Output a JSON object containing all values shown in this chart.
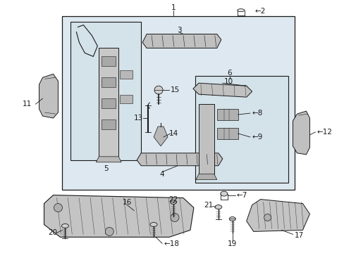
{
  "bg_color": "#ffffff",
  "outer_bg": "#dde8ee",
  "inner_bg": "#dde8ee",
  "line_color": "#1a1a1a",
  "fig_width": 4.89,
  "fig_height": 3.6,
  "dpi": 100
}
